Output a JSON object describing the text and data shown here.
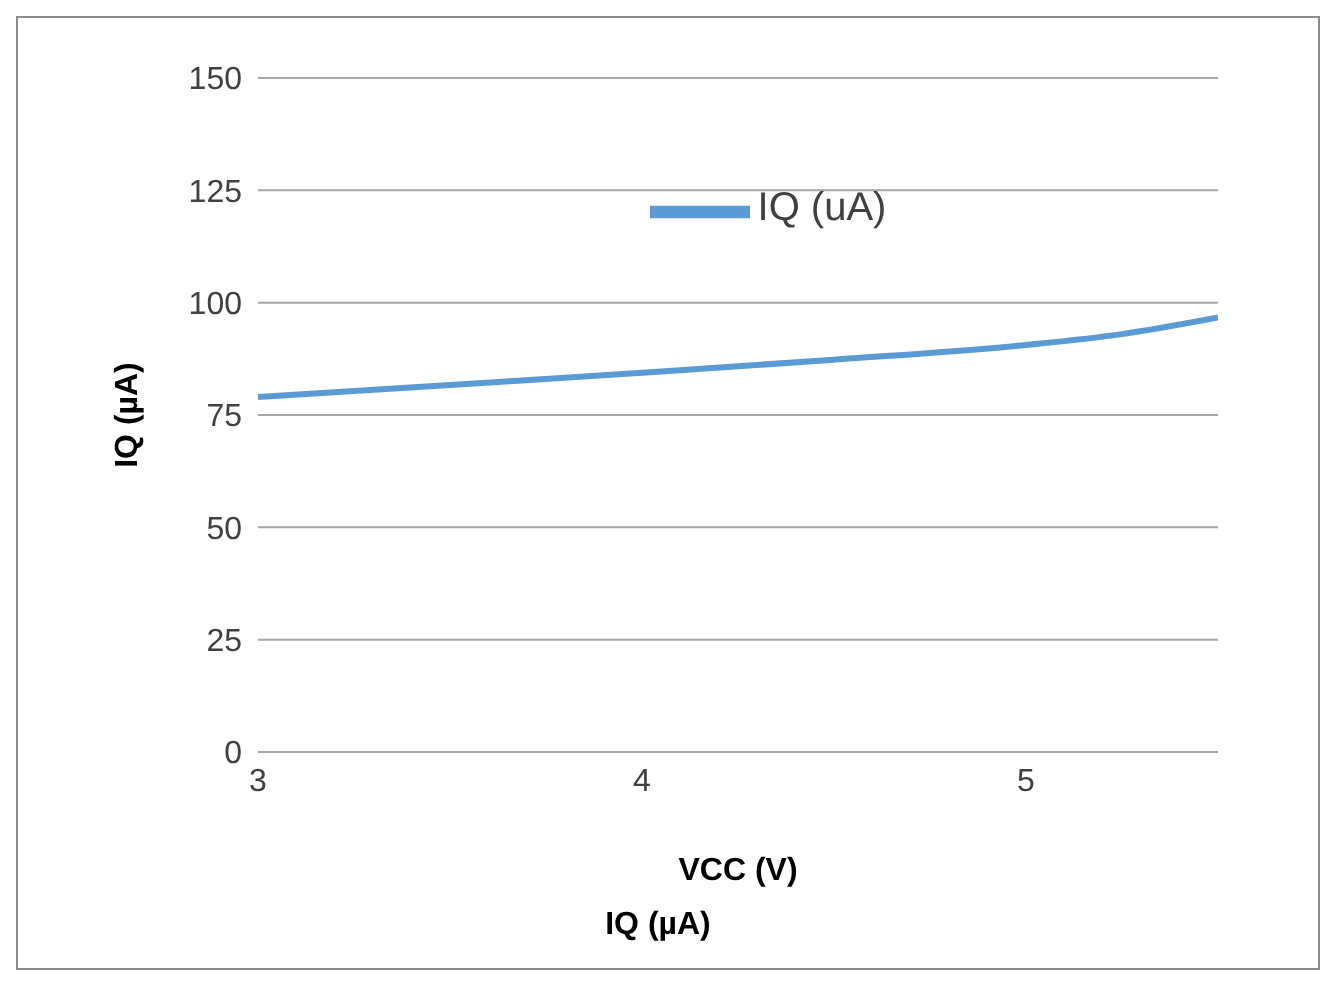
{
  "chart_data": {
    "type": "line",
    "xlabel": "VCC (V)",
    "ylabel": "IQ (µA)",
    "annotations": [
      "IQ (µA)"
    ],
    "x": [
      3,
      3.5,
      4,
      4.5,
      5,
      5.25,
      5.5
    ],
    "series": [
      {
        "name": "IQ (uA)",
        "color": "#5b9bd5",
        "values": [
          79,
          81.7,
          84.4,
          87.3,
          90.6,
          93,
          96.7
        ]
      }
    ],
    "xlim": [
      3,
      5.5
    ],
    "xticks": [
      3,
      4,
      5
    ],
    "ylim": [
      0,
      150
    ],
    "yticks": [
      0,
      25,
      50,
      75,
      100,
      125,
      150
    ],
    "grid": "y",
    "legend": "top",
    "marker": "none",
    "line_style": "solid"
  }
}
